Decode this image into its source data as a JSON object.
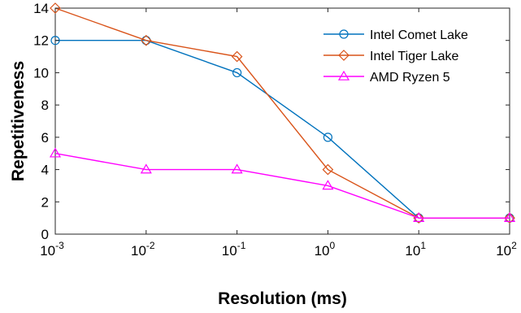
{
  "chart_data": {
    "type": "line",
    "title": "",
    "xlabel": "Resolution (ms)",
    "ylabel": "Repetitiveness",
    "x_scale": "log",
    "x": [
      0.001,
      0.01,
      0.1,
      1,
      10,
      100
    ],
    "x_tick_labels": [
      {
        "base": "10",
        "exp": "-3"
      },
      {
        "base": "10",
        "exp": "-2"
      },
      {
        "base": "10",
        "exp": "-1"
      },
      {
        "base": "10",
        "exp": "0"
      },
      {
        "base": "10",
        "exp": "1"
      },
      {
        "base": "10",
        "exp": "2"
      }
    ],
    "xlim": [
      0.001,
      100
    ],
    "ylim": [
      0,
      14
    ],
    "y_ticks": [
      "0",
      "2",
      "4",
      "6",
      "8",
      "10",
      "12",
      "14"
    ],
    "grid": false,
    "legend_position": "top-right",
    "series": [
      {
        "name": "Intel Comet Lake",
        "color": "#0072BD",
        "marker": "circle",
        "values": [
          12,
          12,
          10,
          6,
          1,
          1
        ]
      },
      {
        "name": "Intel Tiger Lake",
        "color": "#D95319",
        "marker": "diamond",
        "values": [
          14,
          12,
          11,
          4,
          1,
          1
        ]
      },
      {
        "name": "AMD Ryzen 5",
        "color": "#FF00FF",
        "marker": "triangle",
        "values": [
          5,
          4,
          4,
          3,
          1,
          1
        ]
      }
    ]
  }
}
